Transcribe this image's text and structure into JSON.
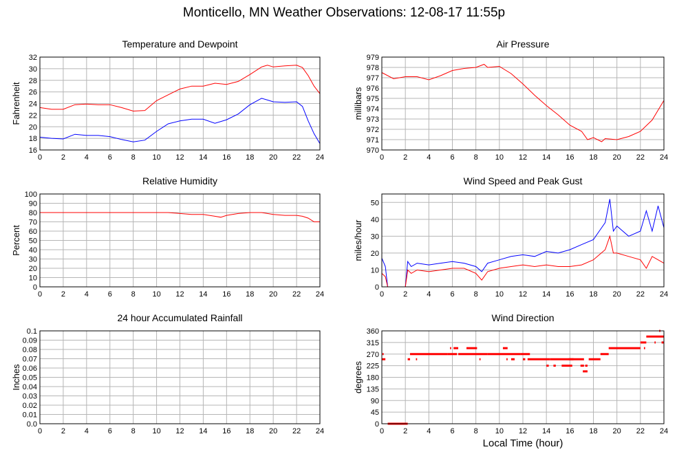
{
  "title": "Monticello, MN Weather Observations: 12-08-17 11:55p",
  "x_axis_label": "Local Time (hour)",
  "chart_data": [
    {
      "type": "line",
      "title": "Temperature and Dewpoint",
      "ylabel": "Fahrenheit",
      "xlim": [
        0,
        24
      ],
      "ylim": [
        16,
        32
      ],
      "yticks": [
        16,
        18,
        20,
        22,
        24,
        26,
        28,
        30,
        32
      ],
      "xticks": [
        0,
        2,
        4,
        6,
        8,
        10,
        12,
        14,
        16,
        18,
        20,
        22,
        24
      ],
      "grid": true,
      "series": [
        {
          "color": "#ff0000",
          "x": [
            0,
            1,
            2,
            3,
            4,
            5,
            6,
            7,
            8,
            9,
            10,
            11,
            12,
            13,
            14,
            15,
            16,
            17,
            18,
            19,
            19.5,
            20,
            21,
            22,
            22.5,
            23,
            23.5,
            24
          ],
          "y": [
            23.3,
            23.0,
            23.0,
            23.8,
            23.9,
            23.8,
            23.8,
            23.3,
            22.7,
            22.8,
            24.5,
            25.5,
            26.5,
            27.0,
            27.0,
            27.5,
            27.3,
            27.8,
            29.0,
            30.3,
            30.6,
            30.3,
            30.5,
            30.6,
            30.2,
            28.8,
            27.0,
            25.7
          ]
        },
        {
          "color": "#0000ff",
          "x": [
            0,
            1,
            2,
            3,
            4,
            5,
            6,
            7,
            8,
            9,
            10,
            11,
            12,
            13,
            14,
            15,
            16,
            17,
            18,
            19,
            19.5,
            20,
            21,
            22,
            22.5,
            23,
            23.5,
            24
          ],
          "y": [
            18.2,
            18.0,
            17.9,
            18.7,
            18.5,
            18.5,
            18.3,
            17.8,
            17.4,
            17.7,
            19.2,
            20.5,
            21.0,
            21.3,
            21.3,
            20.6,
            21.2,
            22.2,
            23.8,
            24.9,
            24.6,
            24.3,
            24.2,
            24.3,
            23.5,
            21.0,
            18.8,
            17.1
          ]
        }
      ]
    },
    {
      "type": "line",
      "title": "Air Pressure",
      "ylabel": "millibars",
      "xlim": [
        0,
        24
      ],
      "ylim": [
        970,
        979
      ],
      "yticks": [
        970,
        971,
        972,
        973,
        974,
        975,
        976,
        977,
        978,
        979
      ],
      "xticks": [
        0,
        2,
        4,
        6,
        8,
        10,
        12,
        14,
        16,
        18,
        20,
        22,
        24
      ],
      "grid": true,
      "series": [
        {
          "color": "#ff0000",
          "x": [
            0,
            1,
            2,
            3,
            4,
            5,
            6,
            7,
            8,
            8.7,
            9,
            10,
            11,
            12,
            13,
            14,
            15,
            16,
            17,
            17.5,
            18,
            18.7,
            19,
            20,
            21,
            22,
            23,
            24
          ],
          "y": [
            977.5,
            976.9,
            977.1,
            977.1,
            976.8,
            977.2,
            977.7,
            977.9,
            978.0,
            978.3,
            978.0,
            978.1,
            977.4,
            976.4,
            975.3,
            974.3,
            973.4,
            972.4,
            971.8,
            971.0,
            971.2,
            970.8,
            971.1,
            971.0,
            971.3,
            971.8,
            972.9,
            974.8
          ]
        }
      ]
    },
    {
      "type": "line",
      "title": "Relative Humidity",
      "ylabel": "Percent",
      "xlim": [
        0,
        24
      ],
      "ylim": [
        0,
        100
      ],
      "yticks": [
        0,
        10,
        20,
        30,
        40,
        50,
        60,
        70,
        80,
        90,
        100
      ],
      "xticks": [
        0,
        2,
        4,
        6,
        8,
        10,
        12,
        14,
        16,
        18,
        20,
        22,
        24
      ],
      "grid": true,
      "series": [
        {
          "color": "#ff0000",
          "x": [
            0,
            2,
            4,
            6,
            8,
            10,
            11,
            12,
            13,
            14,
            15,
            15.5,
            16,
            17,
            18,
            19,
            20,
            21,
            22,
            22.5,
            23,
            23.5,
            24
          ],
          "y": [
            80,
            80,
            80,
            80,
            80,
            80,
            80,
            79,
            78,
            78,
            76,
            75,
            77,
            79,
            80,
            80,
            78,
            77,
            77,
            76,
            74,
            70,
            70
          ]
        }
      ]
    },
    {
      "type": "line",
      "title": "Wind Speed and Peak Gust",
      "ylabel": "miles/hour",
      "xlim": [
        0,
        24
      ],
      "ylim": [
        0,
        55
      ],
      "yticks": [
        0,
        10,
        20,
        30,
        40,
        50
      ],
      "xticks": [
        0,
        2,
        4,
        6,
        8,
        10,
        12,
        14,
        16,
        18,
        20,
        22,
        24
      ],
      "grid": true,
      "series": [
        {
          "color": "#0000ff",
          "x": [
            0,
            0.3,
            0.5,
            1,
            2,
            2.2,
            2.5,
            3,
            4,
            5,
            6,
            7,
            8,
            8.5,
            9,
            10,
            11,
            12,
            13,
            14,
            15,
            16,
            17,
            18,
            18.5,
            19,
            19.4,
            19.7,
            20,
            21,
            22,
            22.5,
            23,
            23.5,
            24
          ],
          "y": [
            17,
            12,
            0,
            0,
            0,
            15,
            12,
            14,
            13,
            14,
            15,
            14,
            12,
            9,
            14,
            16,
            18,
            19,
            18,
            21,
            20,
            22,
            25,
            28,
            33,
            38,
            52,
            33,
            36,
            30,
            33,
            45,
            33,
            48,
            35
          ]
        },
        {
          "color": "#ff0000",
          "x": [
            0,
            0.3,
            0.5,
            1,
            2,
            2.2,
            2.5,
            3,
            4,
            5,
            6,
            7,
            8,
            8.5,
            9,
            10,
            11,
            12,
            13,
            14,
            15,
            16,
            17,
            18,
            18.5,
            19,
            19.4,
            19.7,
            20,
            21,
            22,
            22.5,
            23,
            23.5,
            24
          ],
          "y": [
            8,
            6,
            0,
            0,
            0,
            10,
            8,
            10,
            9,
            10,
            11,
            11,
            8,
            4,
            9,
            11,
            12,
            13,
            12,
            13,
            12,
            12,
            13,
            16,
            19,
            22,
            30,
            20,
            20,
            18,
            16,
            11,
            18,
            16,
            14
          ]
        }
      ]
    },
    {
      "type": "line",
      "title": "24 hour Accumulated Rainfall",
      "ylabel": "Inches",
      "xlim": [
        0,
        24
      ],
      "ylim": [
        0,
        0.1
      ],
      "yticks": [
        "0.0",
        "0.01",
        "0.02",
        "0.03",
        "0.04",
        "0.05",
        "0.06",
        "0.07",
        "0.08",
        "0.09",
        "0.1"
      ],
      "xticks": [
        0,
        2,
        4,
        6,
        8,
        10,
        12,
        14,
        16,
        18,
        20,
        22,
        24
      ],
      "grid": true,
      "series": [
        {
          "color": "#ff0000",
          "x": [
            0,
            24
          ],
          "y": [
            0,
            0
          ]
        }
      ]
    },
    {
      "type": "scatter",
      "title": "Wind Direction",
      "ylabel": "degrees",
      "xlim": [
        0,
        24
      ],
      "ylim": [
        0,
        360
      ],
      "yticks": [
        0,
        45,
        90,
        135,
        180,
        225,
        270,
        315,
        360
      ],
      "xticks": [
        0,
        2,
        4,
        6,
        8,
        10,
        12,
        14,
        16,
        18,
        20,
        22,
        24
      ],
      "grid": true,
      "series": [
        {
          "color": "#ff0000",
          "segments": [
            {
              "x0": 0.0,
              "x1": 0.3,
              "y": 250
            },
            {
              "x0": 0.05,
              "x1": 0.15,
              "y": 270
            },
            {
              "x0": 0.5,
              "x1": 2.2,
              "y": 0
            },
            {
              "x0": 2.2,
              "x1": 2.4,
              "y": 250
            },
            {
              "x0": 2.4,
              "x1": 5.6,
              "y": 270
            },
            {
              "x0": 2.9,
              "x1": 3.0,
              "y": 250
            },
            {
              "x0": 5.6,
              "x1": 6.4,
              "y": 270
            },
            {
              "x0": 5.8,
              "x1": 5.9,
              "y": 293
            },
            {
              "x0": 6.1,
              "x1": 6.5,
              "y": 293
            },
            {
              "x0": 6.5,
              "x1": 9.0,
              "y": 270
            },
            {
              "x0": 7.2,
              "x1": 8.1,
              "y": 293
            },
            {
              "x0": 8.3,
              "x1": 8.4,
              "y": 250
            },
            {
              "x0": 9.0,
              "x1": 11.8,
              "y": 270
            },
            {
              "x0": 10.3,
              "x1": 10.7,
              "y": 293
            },
            {
              "x0": 10.6,
              "x1": 10.7,
              "y": 250
            },
            {
              "x0": 11.0,
              "x1": 11.3,
              "y": 250
            },
            {
              "x0": 11.8,
              "x1": 12.6,
              "y": 270
            },
            {
              "x0": 12.0,
              "x1": 12.2,
              "y": 250
            },
            {
              "x0": 12.4,
              "x1": 14.3,
              "y": 250
            },
            {
              "x0": 14.0,
              "x1": 14.2,
              "y": 225
            },
            {
              "x0": 14.3,
              "x1": 17.2,
              "y": 250
            },
            {
              "x0": 14.6,
              "x1": 14.8,
              "y": 225
            },
            {
              "x0": 15.3,
              "x1": 16.2,
              "y": 225
            },
            {
              "x0": 15.9,
              "x1": 16.3,
              "y": 250
            },
            {
              "x0": 16.9,
              "x1": 17.2,
              "y": 225
            },
            {
              "x0": 17.1,
              "x1": 17.5,
              "y": 203
            },
            {
              "x0": 17.3,
              "x1": 17.5,
              "y": 225
            },
            {
              "x0": 17.6,
              "x1": 18.6,
              "y": 250
            },
            {
              "x0": 18.6,
              "x1": 19.3,
              "y": 270
            },
            {
              "x0": 19.3,
              "x1": 22.0,
              "y": 293
            },
            {
              "x0": 22.0,
              "x1": 22.5,
              "y": 315
            },
            {
              "x0": 22.3,
              "x1": 22.4,
              "y": 293
            },
            {
              "x0": 22.5,
              "x1": 24.0,
              "y": 338
            },
            {
              "x0": 23.2,
              "x1": 23.3,
              "y": 315
            },
            {
              "x0": 23.6,
              "x1": 23.7,
              "y": 360
            },
            {
              "x0": 23.8,
              "x1": 24.0,
              "y": 315
            }
          ]
        }
      ]
    }
  ]
}
